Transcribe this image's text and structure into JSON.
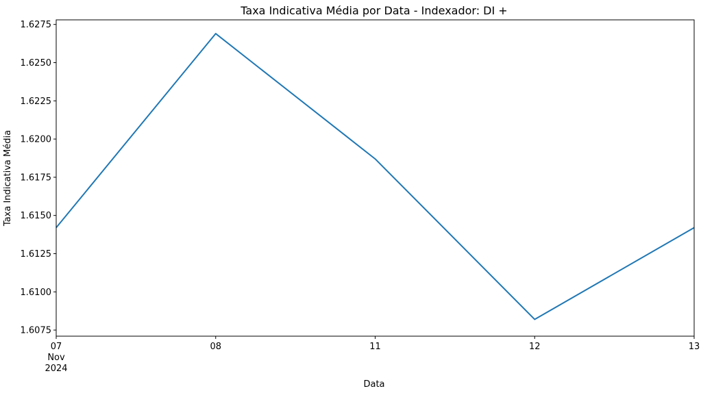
{
  "chart_data": {
    "type": "line",
    "title": "Taxa Indicativa Média por Data - Indexador: DI +",
    "xlabel": "Data",
    "ylabel": "Taxa Indicativa Média",
    "x": [
      "2024-11-07",
      "2024-11-08",
      "2024-11-11",
      "2024-11-12",
      "2024-11-13"
    ],
    "xtick_labels": [
      [
        "07",
        "Nov",
        "2024"
      ],
      [
        "08"
      ],
      [
        "11"
      ],
      [
        "12"
      ],
      [
        "13"
      ]
    ],
    "series": [
      {
        "values": [
          1.6142,
          1.6269,
          1.6187,
          1.6082,
          1.6142
        ],
        "color": "#1f77b4"
      }
    ],
    "ylim": [
      1.6071,
      1.6278
    ],
    "yticks": [
      1.6075,
      1.61,
      1.6125,
      1.615,
      1.6175,
      1.62,
      1.6225,
      1.625,
      1.6275
    ],
    "ytick_labels": [
      "1.6075",
      "1.6100",
      "1.6125",
      "1.6150",
      "1.6175",
      "1.6200",
      "1.6225",
      "1.6250",
      "1.6275"
    ],
    "grid": false,
    "legend": null
  }
}
